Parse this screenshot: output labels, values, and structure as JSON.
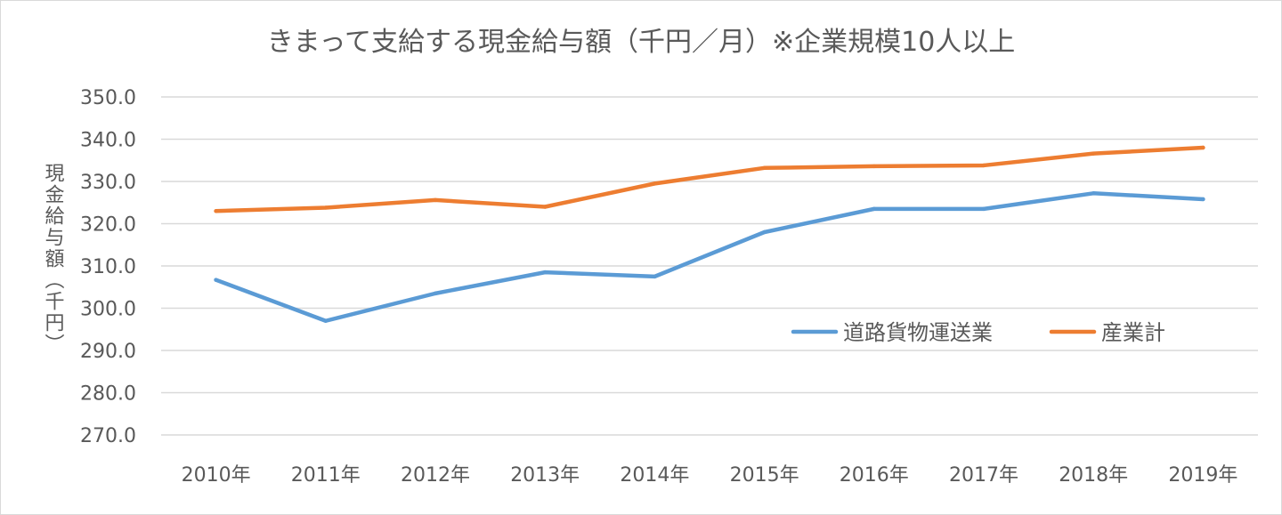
{
  "chart_data": {
    "type": "line",
    "title": "きまって支給する現金給与額（千円／月）※企業規模10人以上",
    "ylabel": "現金給与額（千円）",
    "xlabel": "",
    "categories": [
      "2010年",
      "2011年",
      "2012年",
      "2013年",
      "2014年",
      "2015年",
      "2016年",
      "2017年",
      "2018年",
      "2019年"
    ],
    "series": [
      {
        "name": "道路貨物運送業",
        "color": "#5b9bd5",
        "values": [
          306.7,
          297.0,
          303.5,
          308.5,
          307.5,
          318.0,
          323.5,
          323.5,
          327.2,
          325.8
        ]
      },
      {
        "name": "産業計",
        "color": "#ed7d31",
        "values": [
          323.0,
          323.8,
          325.6,
          324.0,
          329.5,
          333.2,
          333.6,
          333.8,
          336.6,
          338.0
        ]
      }
    ],
    "ylim": [
      270.0,
      350.0
    ],
    "yticks": [
      "270.0",
      "280.0",
      "290.0",
      "300.0",
      "310.0",
      "320.0",
      "330.0",
      "340.0",
      "350.0"
    ],
    "grid": true,
    "legend_position": "inside-lower-right"
  }
}
